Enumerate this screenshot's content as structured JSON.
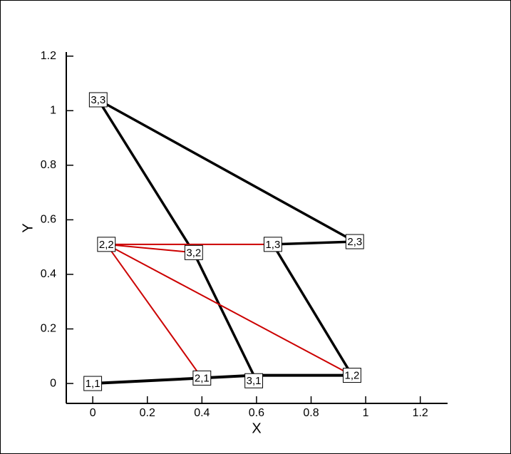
{
  "chart_data": {
    "type": "line",
    "xlabel": "X",
    "ylabel": "Y",
    "xlim": [
      -0.097,
      1.3
    ],
    "ylim": [
      -0.073,
      1.215
    ],
    "xticks": [
      0,
      0.2,
      0.4,
      0.6,
      0.8,
      1,
      1.2
    ],
    "yticks": [
      0,
      0.2,
      0.4,
      0.6,
      0.8,
      1,
      1.2
    ],
    "series": [
      {
        "color": "#000000",
        "width": 4,
        "x": [
          0,
          0.4,
          0.59,
          0.95
        ],
        "y": [
          0,
          0.02,
          0.03,
          0.03
        ]
      },
      {
        "color": "#000000",
        "width": 3.5,
        "x": [
          0.95,
          0.66,
          0.96,
          0.02,
          0.37,
          0.59
        ],
        "y": [
          0.03,
          0.51,
          0.52,
          1.04,
          0.48,
          0.03
        ]
      },
      {
        "color": "#cc0000",
        "width": 2,
        "x": [
          0.4,
          0.05,
          0.95
        ],
        "y": [
          0.02,
          0.51,
          0.03
        ]
      },
      {
        "color": "#cc0000",
        "width": 2,
        "x": [
          0.37,
          0.05,
          0.66
        ],
        "y": [
          0.48,
          0.51,
          0.51
        ]
      }
    ],
    "point_labels": {
      "text": [
        "1,1",
        "2,1",
        "3,1",
        "1,2",
        "2,2",
        "3,2",
        "1,3",
        "2,3",
        "3,3"
      ],
      "x": [
        0,
        0.4,
        0.59,
        0.95,
        0.05,
        0.37,
        0.66,
        0.96,
        0.02
      ],
      "y": [
        0,
        0.02,
        0.01,
        0.03,
        0.51,
        0.48,
        0.51,
        0.52,
        1.04
      ]
    }
  }
}
